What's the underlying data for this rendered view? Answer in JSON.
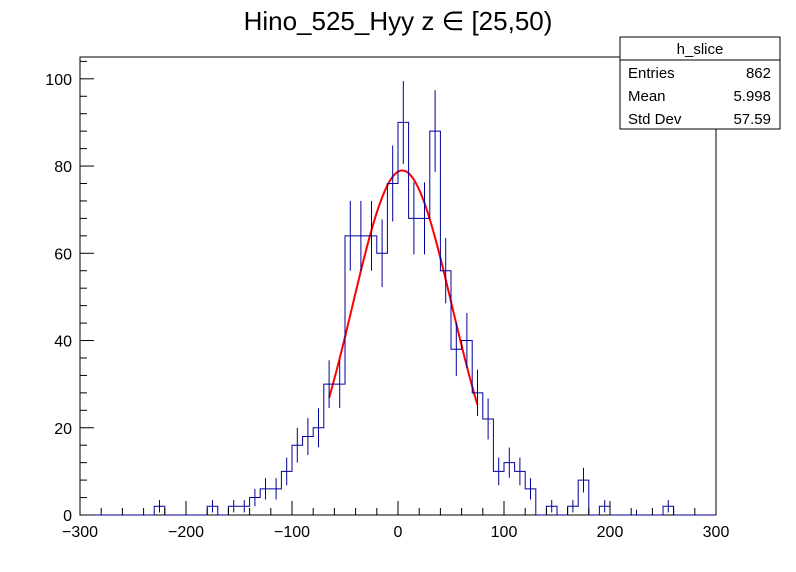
{
  "chart_data": {
    "type": "histogram",
    "title": "Hino_525_Hyy z  ∈ [25,50)",
    "xlabel": "",
    "ylabel": "",
    "xlim": [
      -300,
      300
    ],
    "ylim": [
      0,
      105
    ],
    "grid": false,
    "legend": "none",
    "x_ticks": [
      -300,
      -200,
      -100,
      0,
      100,
      200,
      300
    ],
    "y_ticks": [
      0,
      20,
      40,
      60,
      80,
      100
    ],
    "bin_width": 10,
    "bins": [
      {
        "x": -225,
        "y": 2
      },
      {
        "x": -175,
        "y": 2
      },
      {
        "x": -155,
        "y": 2
      },
      {
        "x": -145,
        "y": 2
      },
      {
        "x": -135,
        "y": 4
      },
      {
        "x": -125,
        "y": 6
      },
      {
        "x": -115,
        "y": 6
      },
      {
        "x": -105,
        "y": 10
      },
      {
        "x": -95,
        "y": 16
      },
      {
        "x": -85,
        "y": 18
      },
      {
        "x": -75,
        "y": 20
      },
      {
        "x": -65,
        "y": 30
      },
      {
        "x": -55,
        "y": 30
      },
      {
        "x": -45,
        "y": 64
      },
      {
        "x": -35,
        "y": 64
      },
      {
        "x": -25,
        "y": 64
      },
      {
        "x": -15,
        "y": 60
      },
      {
        "x": -5,
        "y": 76
      },
      {
        "x": 5,
        "y": 90
      },
      {
        "x": 15,
        "y": 68
      },
      {
        "x": 25,
        "y": 68
      },
      {
        "x": 35,
        "y": 88
      },
      {
        "x": 45,
        "y": 56
      },
      {
        "x": 55,
        "y": 38
      },
      {
        "x": 65,
        "y": 40
      },
      {
        "x": 75,
        "y": 28
      },
      {
        "x": 85,
        "y": 22
      },
      {
        "x": 95,
        "y": 10
      },
      {
        "x": 105,
        "y": 12
      },
      {
        "x": 115,
        "y": 10
      },
      {
        "x": 125,
        "y": 6
      },
      {
        "x": 145,
        "y": 2
      },
      {
        "x": 165,
        "y": 2
      },
      {
        "x": 175,
        "y": 8
      },
      {
        "x": 195,
        "y": 2
      },
      {
        "x": 225,
        "y": 0
      },
      {
        "x": 255,
        "y": 2
      }
    ],
    "fit": {
      "function": "gaus",
      "constant": 79,
      "mean": 4,
      "sigma": 47,
      "range": [
        -65,
        75
      ]
    },
    "colors": {
      "histogram": "#000099",
      "fit": "#ff0000",
      "axes": "#000000"
    },
    "stats_box": {
      "name": "h_slice",
      "rows": [
        {
          "label": "Entries",
          "value": "862"
        },
        {
          "label": "Mean",
          "value": "5.998"
        },
        {
          "label": "Std Dev",
          "value": "57.59"
        }
      ]
    }
  }
}
